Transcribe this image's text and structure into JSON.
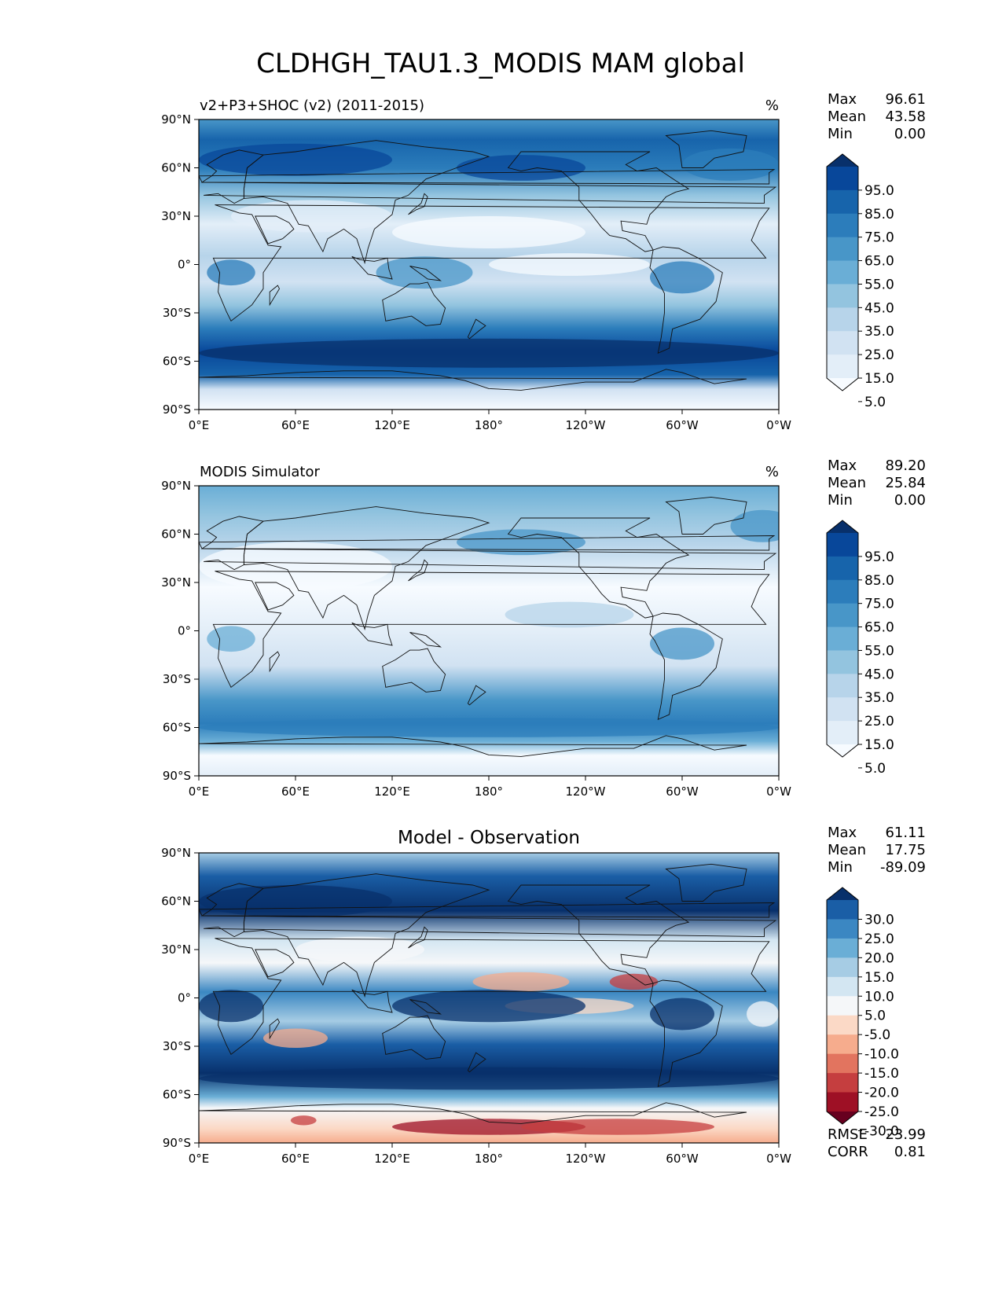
{
  "figure": {
    "title": "CLDHGH_TAU1.3_MODIS MAM global"
  },
  "axes": {
    "lat_ticks": [
      "90°N",
      "60°N",
      "30°N",
      "0°",
      "30°S",
      "60°S",
      "90°S"
    ],
    "lon_ticks": [
      "0°E",
      "60°E",
      "120°E",
      "180°",
      "120°W",
      "60°W",
      "0°W"
    ]
  },
  "panels": [
    {
      "id": "test",
      "title": "v2+P3+SHOC (v2) (2011-2015)",
      "units": "%",
      "colormap": "Blues",
      "stats": [
        {
          "label": "Max",
          "value": "96.61"
        },
        {
          "label": "Mean",
          "value": "43.58"
        },
        {
          "label": "Min",
          "value": "0.00"
        }
      ],
      "colorbar_ticks": [
        "95.0",
        "85.0",
        "75.0",
        "65.0",
        "55.0",
        "45.0",
        "35.0",
        "25.0",
        "15.0",
        "5.0"
      ],
      "colorbar_colors": [
        "#08306b",
        "#08479a",
        "#1764ab",
        "#2c7dbb",
        "#4896c8",
        "#6aaed6",
        "#93c4df",
        "#b7d4ea",
        "#d1e2f2",
        "#e3eef8",
        "#f7fbff"
      ]
    },
    {
      "id": "reference",
      "title": "MODIS Simulator",
      "units": "%",
      "colormap": "Blues",
      "stats": [
        {
          "label": "Max",
          "value": "89.20"
        },
        {
          "label": "Mean",
          "value": "25.84"
        },
        {
          "label": "Min",
          "value": "0.00"
        }
      ],
      "colorbar_ticks": [
        "95.0",
        "85.0",
        "75.0",
        "65.0",
        "55.0",
        "45.0",
        "35.0",
        "25.0",
        "15.0",
        "5.0"
      ],
      "colorbar_colors": [
        "#08306b",
        "#08479a",
        "#1764ab",
        "#2c7dbb",
        "#4896c8",
        "#6aaed6",
        "#93c4df",
        "#b7d4ea",
        "#d1e2f2",
        "#e3eef8",
        "#f7fbff"
      ]
    },
    {
      "id": "difference",
      "title": "Model - Observation",
      "units": "",
      "colormap": "RdBu_r",
      "stats": [
        {
          "label": "Max",
          "value": "61.11"
        },
        {
          "label": "Mean",
          "value": "17.75"
        },
        {
          "label": "Min",
          "value": "-89.09"
        }
      ],
      "colorbar_ticks": [
        "30.0",
        "25.0",
        "20.0",
        "15.0",
        "10.0",
        "5.0",
        "-5.0",
        "-10.0",
        "-15.0",
        "-20.0",
        "-25.0",
        "-30.0"
      ],
      "colorbar_colors": [
        "#08306b",
        "#1a5ea6",
        "#3b87c2",
        "#6aaed6",
        "#a6cce4",
        "#d3e6f2",
        "#f5f7f9",
        "#fbd9c6",
        "#f6ac8d",
        "#e2745f",
        "#c53e3f",
        "#9e1025",
        "#67001f"
      ],
      "extra_stats": [
        {
          "label": "RMSE",
          "value": "23.99"
        },
        {
          "label": "CORR",
          "value": "0.81"
        }
      ]
    }
  ]
}
